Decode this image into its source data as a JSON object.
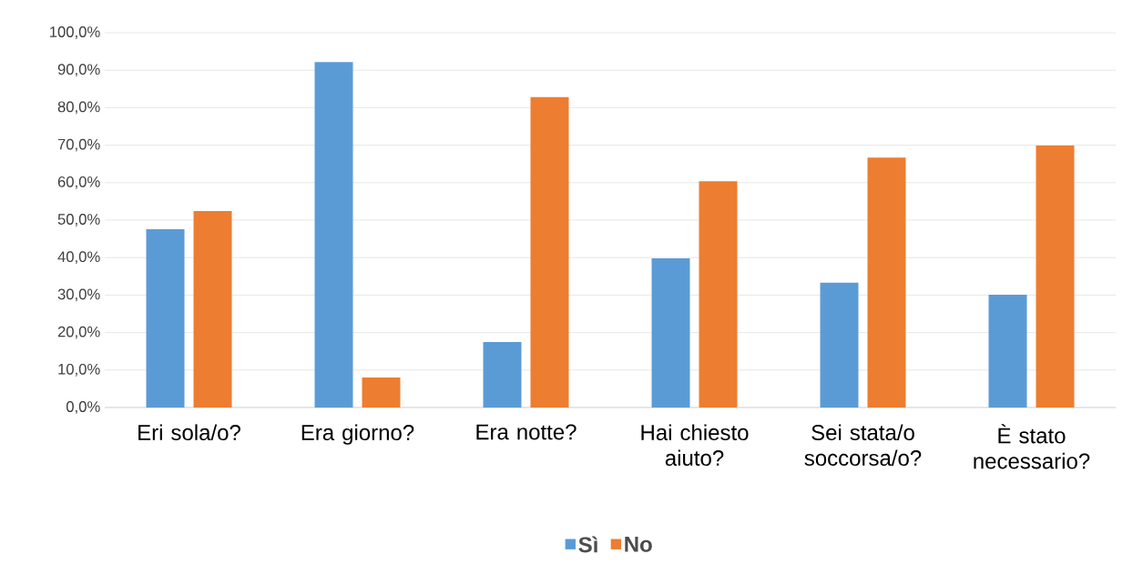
{
  "chart_data": {
    "type": "bar",
    "categories": [
      "Eri sola/o?",
      "Era giorno?",
      "Era notte?",
      "Hai chiesto aiuto?",
      "Sei stata/o soccorsa/o?",
      "È stato necessario?"
    ],
    "series": [
      {
        "name": "Sì",
        "color": "#5b9bd5",
        "values": [
          47.6,
          92.2,
          17.5,
          39.8,
          33.3,
          30.1
        ]
      },
      {
        "name": "No",
        "color": "#ed7d31",
        "values": [
          52.4,
          8.0,
          82.8,
          60.4,
          66.7,
          69.9
        ]
      }
    ],
    "ylim": [
      0,
      100
    ],
    "yticks": [
      {
        "value": 0,
        "label": "0,0%"
      },
      {
        "value": 10,
        "label": "10,0%"
      },
      {
        "value": 20,
        "label": "20,0%"
      },
      {
        "value": 30,
        "label": "30,0%"
      },
      {
        "value": 40,
        "label": "40,0%"
      },
      {
        "value": 50,
        "label": "50,0%"
      },
      {
        "value": 60,
        "label": "60,0%"
      },
      {
        "value": 70,
        "label": "70,0%"
      },
      {
        "value": 80,
        "label": "80,0%"
      },
      {
        "value": 90,
        "label": "90,0%"
      },
      {
        "value": 100,
        "label": "100,0%"
      }
    ],
    "grid": "y",
    "legend": "bottom"
  }
}
